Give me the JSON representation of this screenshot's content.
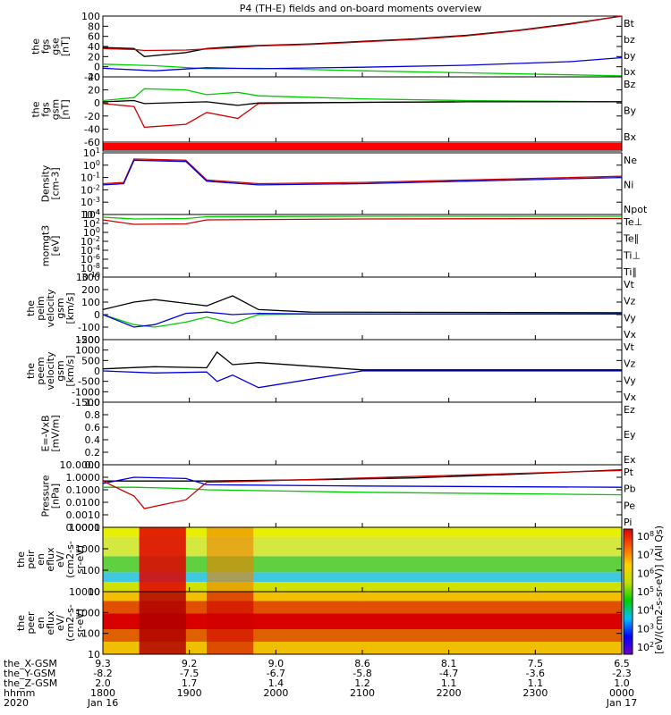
{
  "title": "P4 (TH-E) fields and on-board moments overview",
  "colors": {
    "black": "#000000",
    "red": "#cc0000",
    "green": "#00cc00",
    "blue": "#0000dd",
    "spec_low": "#00a0ff",
    "spec_mid": "#00d000",
    "spec_high": "#ffd000",
    "spec_top": "#e00000"
  },
  "chart_data": [
    {
      "type": "line",
      "id": "fgs_gse",
      "ylabel": [
        "the",
        "fgs",
        "gse",
        "[nT]"
      ],
      "ylim": [
        -20,
        100
      ],
      "ticks": [
        "100",
        "80",
        "60",
        "40",
        "20",
        "0",
        "-20"
      ],
      "legend": [
        {
          "label": "Bt",
          "color": "#000000"
        },
        {
          "label": "bz",
          "color": "#cc0000"
        },
        {
          "label": "by",
          "color": "#00cc00"
        },
        {
          "label": "bx",
          "color": "#0000dd"
        }
      ],
      "series": [
        {
          "name": "Bt",
          "color": "#000000",
          "x": [
            0,
            0.06,
            0.08,
            0.16,
            0.2,
            0.26,
            0.3,
            0.4,
            0.5,
            0.6,
            0.7,
            0.8,
            0.9,
            1.0
          ],
          "values": [
            38,
            36,
            20,
            28,
            36,
            40,
            42,
            45,
            50,
            55,
            62,
            72,
            85,
            103
          ]
        },
        {
          "name": "bz",
          "color": "#cc0000",
          "x": [
            0,
            0.06,
            0.08,
            0.16,
            0.2,
            0.26,
            0.3,
            0.4,
            0.5,
            0.6,
            0.7,
            0.8,
            0.9,
            1.0
          ],
          "values": [
            36,
            34,
            32,
            33,
            35,
            38,
            41,
            44,
            49,
            54,
            61,
            71,
            84,
            101
          ]
        },
        {
          "name": "by",
          "color": "#00cc00",
          "x": [
            0,
            0.1,
            0.2,
            0.3,
            0.5,
            0.7,
            0.9,
            1.0
          ],
          "values": [
            5,
            2,
            -4,
            -3,
            -8,
            -12,
            -16,
            -18
          ]
        },
        {
          "name": "bx",
          "color": "#0000dd",
          "x": [
            0,
            0.1,
            0.2,
            0.3,
            0.5,
            0.7,
            0.9,
            1.0
          ],
          "values": [
            -3,
            -8,
            -2,
            -4,
            -1,
            3,
            10,
            18
          ]
        }
      ]
    },
    {
      "type": "line",
      "id": "fgs_gsm",
      "ylabel": [
        "the",
        "fgs",
        "gsm",
        "[nT]"
      ],
      "ylim": [
        -70,
        40
      ],
      "ticks": [
        "40",
        "20",
        "0",
        "-20",
        "-40",
        "-60"
      ],
      "legend": [
        {
          "label": "Bz",
          "color": "#00cc00"
        },
        {
          "label": "By",
          "color": "#cc0000"
        },
        {
          "label": "Bx",
          "color": "#000000"
        }
      ],
      "series": [
        {
          "name": "Bz",
          "color": "#00cc00",
          "x": [
            0,
            0.06,
            0.08,
            0.16,
            0.2,
            0.26,
            0.3,
            0.5,
            0.7,
            1.0
          ],
          "values": [
            0,
            5,
            20,
            18,
            10,
            14,
            8,
            3,
            0,
            -2
          ]
        },
        {
          "name": "By",
          "color": "#cc0000",
          "x": [
            0,
            0.06,
            0.08,
            0.16,
            0.2,
            0.26,
            0.3,
            0.5,
            0.7,
            1.0
          ],
          "values": [
            -5,
            -10,
            -45,
            -40,
            -20,
            -30,
            -5,
            -3,
            -2,
            -2
          ]
        },
        {
          "name": "Bx",
          "color": "#000000",
          "x": [
            0,
            0.06,
            0.08,
            0.16,
            0.2,
            0.26,
            0.3,
            0.5,
            0.7,
            1.0
          ],
          "values": [
            -2,
            0,
            -5,
            -3,
            -2,
            -8,
            -4,
            -3,
            -2,
            -2
          ]
        }
      ]
    },
    {
      "type": "line",
      "id": "density",
      "scale": "log",
      "ylabel": [
        "Density",
        "[cm-3]"
      ],
      "ylim": [
        -4,
        1
      ],
      "ticks": [
        "10^1",
        "10^0",
        "10^-1",
        "10^-2",
        "10^-3",
        "10^-4"
      ],
      "legend": [
        {
          "label": "Ne",
          "color": "#cc0000"
        },
        {
          "label": "Ni",
          "color": "#000000"
        },
        {
          "label": "Npot",
          "color": "#0000dd"
        }
      ],
      "series": [
        {
          "name": "Ne",
          "color": "#cc0000",
          "x": [
            0,
            0.04,
            0.06,
            0.16,
            0.2,
            0.3,
            0.5,
            0.7,
            1.0
          ],
          "values": [
            -1.5,
            -1.4,
            0.5,
            0.4,
            -1.2,
            -1.5,
            -1.4,
            -1.2,
            -0.9
          ]
        },
        {
          "name": "Npot",
          "color": "#0000dd",
          "x": [
            0,
            0.04,
            0.06,
            0.16,
            0.2,
            0.3,
            0.5,
            0.7,
            1.0
          ],
          "values": [
            -1.6,
            -1.5,
            0.4,
            0.3,
            -1.3,
            -1.6,
            -1.5,
            -1.3,
            -1.0
          ]
        }
      ]
    },
    {
      "type": "line",
      "id": "moms_t",
      "scale": "log",
      "ylabel": [
        "momgt3",
        "[eV]"
      ],
      "ylim": [
        -10,
        4
      ],
      "ticks": [
        "10^4",
        "10^2",
        "10^0",
        "10^-2",
        "10^-4",
        "10^-6",
        "10^-8",
        "10^-10"
      ],
      "legend": [
        {
          "label": "Te⊥",
          "color": "#cc0000"
        },
        {
          "label": "Te∥",
          "color": "#000000"
        },
        {
          "label": "Ti⊥",
          "color": "#0000dd"
        },
        {
          "label": "Ti∥",
          "color": "#00cc00"
        }
      ],
      "series": [
        {
          "name": "Ti",
          "color": "#00cc00",
          "x": [
            0,
            0.06,
            0.16,
            0.2,
            0.5,
            1.0
          ],
          "values": [
            3.4,
            3.0,
            3.1,
            3.5,
            3.6,
            3.6
          ]
        },
        {
          "name": "Te",
          "color": "#cc0000",
          "x": [
            0,
            0.06,
            0.16,
            0.2,
            0.5,
            1.0
          ],
          "values": [
            2.8,
            1.8,
            1.9,
            2.8,
            3.0,
            3.1
          ]
        }
      ]
    },
    {
      "type": "line",
      "id": "peim_v",
      "ylabel": [
        "the",
        "peim",
        "velocity",
        "gsm",
        "[km/s]"
      ],
      "ylim": [
        -200,
        300
      ],
      "ticks": [
        "300",
        "200",
        "100",
        "0",
        "-100",
        "-200"
      ],
      "legend": [
        {
          "label": "Vt",
          "color": "#000000"
        },
        {
          "label": "Vz",
          "color": "#cc0000"
        },
        {
          "label": "Vy",
          "color": "#00cc00"
        },
        {
          "label": "Vx",
          "color": "#0000dd"
        }
      ],
      "series": [
        {
          "name": "Vt",
          "color": "#000000",
          "x": [
            0,
            0.06,
            0.1,
            0.16,
            0.2,
            0.25,
            0.3,
            0.4,
            1.0
          ],
          "values": [
            40,
            100,
            120,
            90,
            70,
            150,
            40,
            20,
            15
          ]
        },
        {
          "name": "Vy",
          "color": "#00cc00",
          "x": [
            0,
            0.06,
            0.1,
            0.16,
            0.2,
            0.25,
            0.3,
            0.4,
            1.0
          ],
          "values": [
            0,
            -80,
            -100,
            -60,
            -20,
            -70,
            0,
            5,
            5
          ]
        },
        {
          "name": "Vx",
          "color": "#0000dd",
          "x": [
            0,
            0.06,
            0.1,
            0.16,
            0.2,
            0.25,
            0.3,
            0.4,
            1.0
          ],
          "values": [
            0,
            -100,
            -80,
            10,
            20,
            0,
            10,
            5,
            5
          ]
        }
      ]
    },
    {
      "type": "line",
      "id": "peem_v",
      "ylabel": [
        "the",
        "peem",
        "velocity",
        "gsm",
        "[km/s]"
      ],
      "ylim": [
        -1500,
        1500
      ],
      "ticks": [
        "1500",
        "1000",
        "500",
        "0",
        "-500",
        "-1000",
        "-1500"
      ],
      "legend": [
        {
          "label": "Vt",
          "color": "#000000"
        },
        {
          "label": "Vz",
          "color": "#cc0000"
        },
        {
          "label": "Vy",
          "color": "#00cc00"
        },
        {
          "label": "Vx",
          "color": "#0000dd"
        }
      ],
      "series": [
        {
          "name": "Vt",
          "color": "#000000",
          "x": [
            0,
            0.1,
            0.2,
            0.22,
            0.25,
            0.3,
            0.5,
            1.0
          ],
          "values": [
            100,
            200,
            150,
            900,
            300,
            400,
            50,
            50
          ]
        },
        {
          "name": "Vx",
          "color": "#0000dd",
          "x": [
            0,
            0.1,
            0.2,
            0.22,
            0.25,
            0.3,
            0.5,
            1.0
          ],
          "values": [
            0,
            -100,
            -50,
            -500,
            -200,
            -800,
            0,
            0
          ]
        }
      ]
    },
    {
      "type": "line",
      "id": "efield",
      "ylabel": [
        "E=-VxB",
        "[mV/m]"
      ],
      "ylim": [
        0,
        1
      ],
      "ticks": [
        "1.0",
        "0.8",
        "0.6",
        "0.4",
        "0.2",
        "0.0"
      ],
      "legend": [
        {
          "label": "Ez",
          "color": "#cc0000"
        },
        {
          "label": "Ey",
          "color": "#00cc00"
        },
        {
          "label": "Ex",
          "color": "#0000dd"
        }
      ],
      "series": []
    },
    {
      "type": "line",
      "id": "pressure",
      "scale": "log",
      "ylabel": [
        "Pressure",
        "[nPa]"
      ],
      "ylim": [
        -4,
        1
      ],
      "ticks": [
        "10.0000",
        "1.0000",
        "0.1000",
        "0.0100",
        "0.0010",
        "0.0001"
      ],
      "legend": [
        {
          "label": "Pt",
          "color": "#000000"
        },
        {
          "label": "Pb",
          "color": "#cc0000"
        },
        {
          "label": "Pe",
          "color": "#00cc00"
        },
        {
          "label": "Pi",
          "color": "#0000dd"
        }
      ],
      "series": [
        {
          "name": "Pt",
          "color": "#000000",
          "x": [
            0,
            0.2,
            0.4,
            0.6,
            0.8,
            1.0
          ],
          "values": [
            -0.3,
            -0.3,
            -0.2,
            -0.05,
            0.25,
            0.6
          ]
        },
        {
          "name": "Pi",
          "color": "#0000dd",
          "x": [
            0,
            0.06,
            0.16,
            0.2,
            0.5,
            1.0
          ],
          "values": [
            -0.5,
            0,
            -0.1,
            -0.6,
            -0.7,
            -0.8
          ]
        },
        {
          "name": "Pe",
          "color": "#00cc00",
          "x": [
            0,
            0.06,
            0.16,
            0.2,
            0.5,
            1.0
          ],
          "values": [
            -0.8,
            -0.8,
            -0.9,
            -1.0,
            -1.2,
            -1.4
          ]
        },
        {
          "name": "Pb",
          "color": "#cc0000",
          "x": [
            0,
            0.06,
            0.08,
            0.16,
            0.2,
            0.3,
            1.0
          ],
          "values": [
            -0.3,
            -1.5,
            -2.5,
            -1.8,
            -0.4,
            -0.3,
            0.55
          ]
        }
      ]
    },
    {
      "type": "heatmap",
      "id": "peir_flux",
      "ylabel": [
        "the",
        "peir",
        "en",
        "eflux",
        "eV/",
        "(cm2-s-",
        "sr-eV)"
      ],
      "ticks": [
        "10000",
        "1000",
        "100",
        "10"
      ]
    },
    {
      "type": "heatmap",
      "id": "peer_flux",
      "ylabel": [
        "the",
        "peer",
        "en",
        "eflux",
        "eV/",
        "(cm2-s-",
        "sr-eV)"
      ],
      "ticks": [
        "10000",
        "1000",
        "100",
        "10"
      ]
    }
  ],
  "colorbar": {
    "ticks": [
      "10^8",
      "10^7",
      "10^6",
      "10^5",
      "10^4",
      "10^3",
      "10^2"
    ],
    "label": "[eV/(cm2-s-sr-eV)] (All Qs)"
  },
  "xaxis": {
    "row_labels": [
      "the_X-GSM",
      "the_Y-GSM",
      "the_Z-GSM",
      "hhmm",
      "2020"
    ],
    "columns": [
      {
        "vals": [
          "9.3",
          "-8.2",
          "2.0",
          "1800",
          "Jan 16"
        ]
      },
      {
        "vals": [
          "9.2",
          "-7.5",
          "1.7",
          "1900",
          ""
        ]
      },
      {
        "vals": [
          "9.0",
          "-6.7",
          "1.4",
          "2000",
          ""
        ]
      },
      {
        "vals": [
          "8.6",
          "-5.8",
          "1.2",
          "2100",
          ""
        ]
      },
      {
        "vals": [
          "8.1",
          "-4.7",
          "1.1",
          "2200",
          ""
        ]
      },
      {
        "vals": [
          "7.5",
          "-3.6",
          "1.1",
          "2300",
          ""
        ]
      },
      {
        "vals": [
          "6.5",
          "-2.3",
          "1.0",
          "0000",
          "Jan 17"
        ]
      }
    ]
  }
}
